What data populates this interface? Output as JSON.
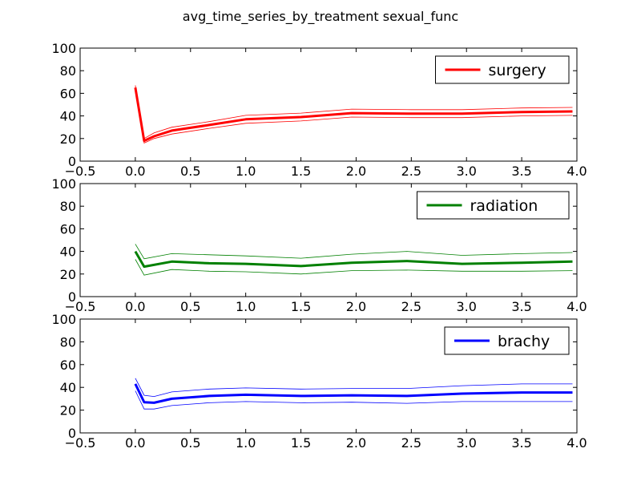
{
  "figure": {
    "title": "avg_time_series_by_treatment sexual_func"
  },
  "chart_data": [
    {
      "type": "line",
      "xlim": [
        -0.5,
        4.0
      ],
      "ylim": [
        0,
        100
      ],
      "xticks": [
        "−0.5",
        "0.0",
        "0.5",
        "1.0",
        "1.5",
        "2.0",
        "2.5",
        "3.0",
        "3.5",
        "4.0"
      ],
      "yticks": [
        "0",
        "20",
        "40",
        "60",
        "80",
        "100"
      ],
      "legend": "top-right",
      "grid": false,
      "series": [
        {
          "name": "surgery",
          "color": "#ff0000",
          "x": [
            0.0,
            0.08,
            0.17,
            0.33,
            0.67,
            1.0,
            1.5,
            1.96,
            2.5,
            2.96,
            3.5,
            3.96
          ],
          "mean": [
            65,
            18,
            22,
            27,
            32,
            37,
            39,
            42.5,
            42,
            42,
            43.5,
            44
          ],
          "upper": [
            67,
            20,
            25,
            30,
            35,
            40.5,
            42.5,
            46,
            45.5,
            45.5,
            47,
            47.5
          ],
          "lower": [
            62,
            16,
            20,
            24,
            29,
            33.5,
            35.5,
            39,
            38.5,
            38.5,
            40,
            40.5
          ]
        }
      ]
    },
    {
      "type": "line",
      "xlim": [
        -0.5,
        4.0
      ],
      "ylim": [
        0,
        100
      ],
      "xticks": [
        "−0.5",
        "0.0",
        "0.5",
        "1.0",
        "1.5",
        "2.0",
        "2.5",
        "3.0",
        "3.5",
        "4.0"
      ],
      "yticks": [
        "0",
        "20",
        "40",
        "60",
        "80",
        "100"
      ],
      "legend": "top-right",
      "grid": false,
      "series": [
        {
          "name": "radiation",
          "color": "#008000",
          "x": [
            0.0,
            0.08,
            0.33,
            0.67,
            1.0,
            1.5,
            1.96,
            2.46,
            2.96,
            3.5,
            3.96
          ],
          "mean": [
            40,
            26.5,
            31,
            29.5,
            29,
            27,
            30,
            31.5,
            29,
            30,
            31
          ],
          "upper": [
            46.5,
            33.5,
            38,
            37,
            36,
            34,
            37.5,
            40,
            36.5,
            38,
            39
          ],
          "lower": [
            33,
            19,
            24,
            22.5,
            22,
            20,
            23,
            23.5,
            22.5,
            22.5,
            23
          ]
        }
      ]
    },
    {
      "type": "line",
      "xlim": [
        -0.5,
        4.0
      ],
      "ylim": [
        0,
        100
      ],
      "xticks": [
        "−0.5",
        "0.0",
        "0.5",
        "1.0",
        "1.5",
        "2.0",
        "2.5",
        "3.0",
        "3.5",
        "4.0"
      ],
      "yticks": [
        "0",
        "20",
        "40",
        "60",
        "80",
        "100"
      ],
      "legend": "top-right",
      "grid": false,
      "series": [
        {
          "name": "brachy",
          "color": "#0000ff",
          "x": [
            0.0,
            0.08,
            0.17,
            0.33,
            0.67,
            1.0,
            1.5,
            1.96,
            2.46,
            2.96,
            3.5,
            3.96
          ],
          "mean": [
            43,
            27,
            26.5,
            30,
            32.5,
            33.5,
            32.5,
            33,
            32.5,
            34.5,
            35.5,
            35.5
          ],
          "upper": [
            48,
            33,
            32,
            36,
            38.5,
            39.5,
            38.5,
            39,
            39,
            41.5,
            43,
            43
          ],
          "lower": [
            37,
            21,
            21,
            24,
            26.5,
            27.5,
            26.5,
            27,
            26,
            27.5,
            27.5,
            27.5
          ]
        }
      ]
    }
  ]
}
